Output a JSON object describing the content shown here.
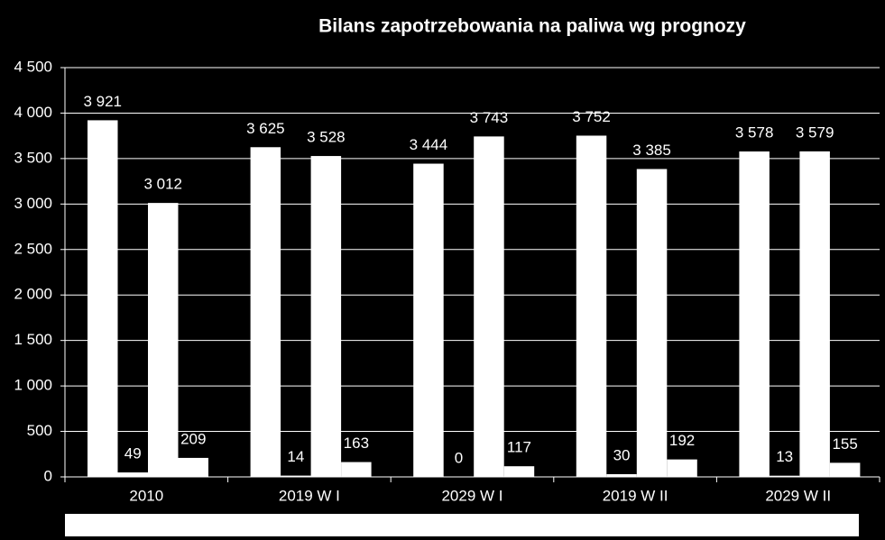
{
  "chart_data": {
    "type": "bar",
    "title": "Bilans zapotrzebowania na paliwa wg prognozy",
    "categories": [
      "2010",
      "2019 W I",
      "2029 W I",
      "2019 W II",
      "2029 W II"
    ],
    "series": [
      {
        "color": "#ffffff",
        "values": [
          3921,
          3625,
          3444,
          3752,
          3578
        ],
        "value_labels": [
          "3 921",
          "3 625",
          "3 444",
          "3 752",
          "3 578"
        ]
      },
      {
        "color": "#ffffff",
        "values": [
          49,
          14,
          0,
          30,
          13
        ],
        "value_labels": [
          "49",
          "14",
          "0",
          "30",
          "13"
        ]
      },
      {
        "color": "#ffffff",
        "values": [
          3012,
          3528,
          3743,
          3385,
          3579
        ],
        "value_labels": [
          "3 012",
          "3 528",
          "3 743",
          "3 385",
          "3 579"
        ]
      },
      {
        "color": "#ffffff",
        "values": [
          209,
          163,
          117,
          192,
          155
        ],
        "value_labels": [
          "209",
          "163",
          "117",
          "192",
          "155"
        ]
      }
    ],
    "ylim": [
      0,
      4500
    ],
    "yticks": [
      0,
      500,
      {
        "value": 1000,
        "label": "1 000"
      },
      {
        "value": 1500,
        "label": "1 500"
      },
      {
        "value": 2000,
        "label": "2 000"
      },
      {
        "value": 2500,
        "label": "2 500"
      },
      {
        "value": 3000,
        "label": "3 000"
      },
      {
        "value": 3500,
        "label": "3 500"
      },
      {
        "value": 4000,
        "label": "4 000"
      },
      {
        "value": 4500,
        "label": "4 500"
      }
    ],
    "grid": true
  }
}
